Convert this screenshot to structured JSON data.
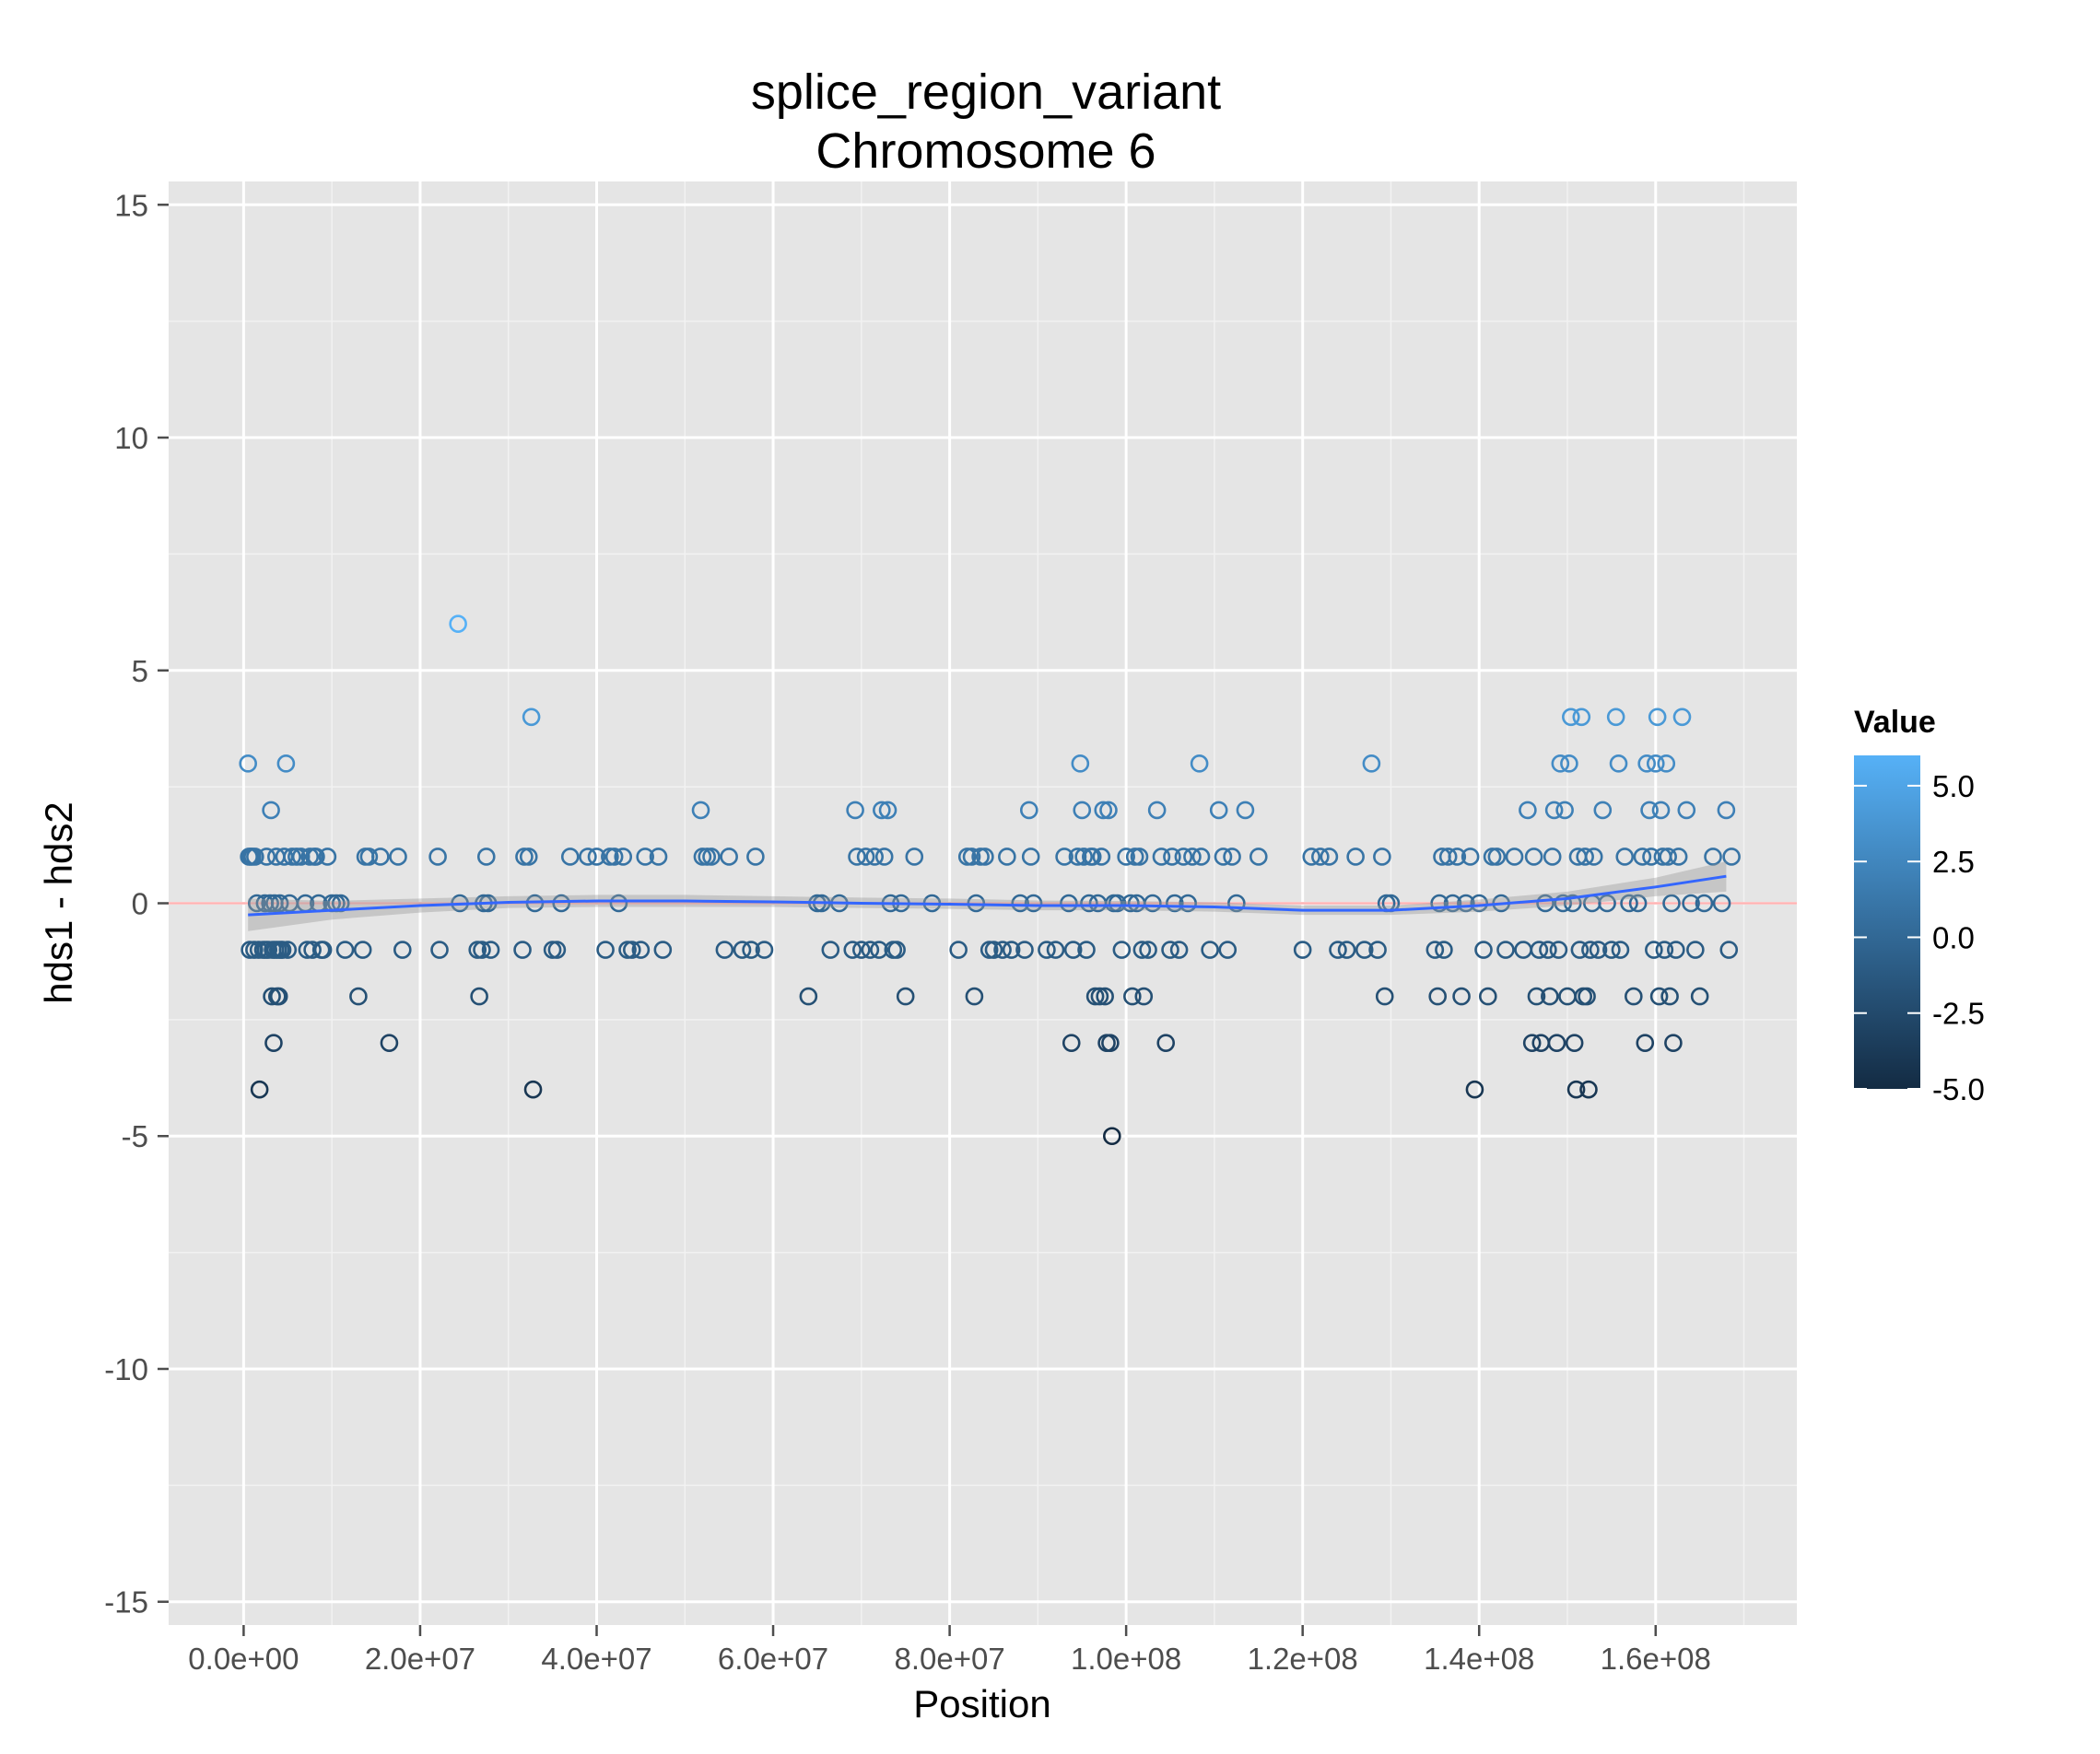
{
  "chart_data": {
    "type": "scatter",
    "title": "splice_region_variant",
    "subtitle": "Chromosome 6",
    "xlabel": "Position",
    "ylabel": "hds1 - hds2",
    "xlim": [
      -8500000,
      176000000
    ],
    "ylim": [
      -15.5,
      15.5
    ],
    "x_ticks": [
      0,
      20000000,
      40000000,
      60000000,
      80000000,
      100000000,
      120000000,
      140000000,
      160000000
    ],
    "x_tick_labels": [
      "0.0e+00",
      "2.0e+07",
      "4.0e+07",
      "6.0e+07",
      "8.0e+07",
      "1.0e+08",
      "1.2e+08",
      "1.4e+08",
      "1.6e+08"
    ],
    "y_ticks": [
      -15,
      -10,
      -5,
      0,
      5,
      10,
      15
    ],
    "y_tick_labels": [
      "-15",
      "-10",
      "-5",
      "0",
      "5",
      "10",
      "15"
    ],
    "grid": true,
    "reference_line": {
      "y": 0,
      "color": "#ffb3b3"
    },
    "legend": {
      "title": "Value",
      "placement": "right",
      "type": "continuous-color",
      "range": [
        -5,
        6
      ],
      "color_low": "#132b43",
      "color_high": "#56b1f7",
      "labels": [
        "5.0",
        "2.5",
        "0.0",
        "-2.5",
        "-5.0"
      ],
      "label_values": [
        5,
        2.5,
        0,
        -2.5,
        -5
      ]
    },
    "smooth": {
      "color": "#3366ff",
      "band_color": "#999999",
      "x": [
        500000,
        10000000,
        20000000,
        30000000,
        40000000,
        50000000,
        60000000,
        70000000,
        80000000,
        90000000,
        100000000,
        110000000,
        120000000,
        130000000,
        140000000,
        150000000,
        160000000,
        168000000
      ],
      "y": [
        -0.25,
        -0.15,
        -0.05,
        0.02,
        0.05,
        0.05,
        0.03,
        0.0,
        -0.02,
        -0.05,
        -0.05,
        -0.08,
        -0.15,
        -0.15,
        -0.05,
        0.1,
        0.35,
        0.58
      ],
      "lower": [
        -0.6,
        -0.35,
        -0.2,
        -0.1,
        -0.08,
        -0.08,
        -0.08,
        -0.1,
        -0.12,
        -0.15,
        -0.15,
        -0.18,
        -0.25,
        -0.25,
        -0.18,
        -0.05,
        0.15,
        0.25
      ],
      "upper": [
        0.1,
        0.05,
        0.1,
        0.15,
        0.18,
        0.18,
        0.15,
        0.12,
        0.1,
        0.06,
        0.05,
        0.02,
        -0.05,
        -0.05,
        0.08,
        0.25,
        0.55,
        0.9
      ]
    },
    "points": [
      [
        500000,
        3
      ],
      [
        600000,
        1
      ],
      [
        700000,
        -1
      ],
      [
        800000,
        1
      ],
      [
        1000000,
        1
      ],
      [
        1200000,
        -1
      ],
      [
        1300000,
        1
      ],
      [
        1500000,
        0
      ],
      [
        1700000,
        -1
      ],
      [
        1800000,
        -4
      ],
      [
        2200000,
        -1
      ],
      [
        2400000,
        0
      ],
      [
        2500000,
        -1
      ],
      [
        2600000,
        1
      ],
      [
        2800000,
        -1
      ],
      [
        3000000,
        0
      ],
      [
        3100000,
        2
      ],
      [
        3200000,
        -2
      ],
      [
        3300000,
        -1
      ],
      [
        3400000,
        -3
      ],
      [
        3500000,
        0
      ],
      [
        3600000,
        -1
      ],
      [
        3700000,
        1
      ],
      [
        3800000,
        -2
      ],
      [
        3900000,
        -1
      ],
      [
        4000000,
        -2
      ],
      [
        4100000,
        0
      ],
      [
        4200000,
        -1
      ],
      [
        4400000,
        -1
      ],
      [
        4600000,
        1
      ],
      [
        4800000,
        3
      ],
      [
        5000000,
        -1
      ],
      [
        5200000,
        0
      ],
      [
        5500000,
        1
      ],
      [
        6000000,
        1
      ],
      [
        6500000,
        1
      ],
      [
        7000000,
        0
      ],
      [
        7200000,
        -1
      ],
      [
        7500000,
        1
      ],
      [
        7800000,
        -1
      ],
      [
        8000000,
        1
      ],
      [
        8200000,
        1
      ],
      [
        8500000,
        0
      ],
      [
        8800000,
        -1
      ],
      [
        9000000,
        -1
      ],
      [
        9500000,
        1
      ],
      [
        10000000,
        0
      ],
      [
        10500000,
        0
      ],
      [
        11000000,
        0
      ],
      [
        11500000,
        -1
      ],
      [
        13000000,
        -2
      ],
      [
        13500000,
        -1
      ],
      [
        13800000,
        1
      ],
      [
        14200000,
        1
      ],
      [
        15500000,
        1
      ],
      [
        16500000,
        -3
      ],
      [
        17500000,
        1
      ],
      [
        18000000,
        -1
      ],
      [
        22000000,
        1
      ],
      [
        22200000,
        -1
      ],
      [
        24300000,
        6
      ],
      [
        24500000,
        0
      ],
      [
        26500000,
        -1
      ],
      [
        26700000,
        -2
      ],
      [
        27000000,
        -1
      ],
      [
        27200000,
        0
      ],
      [
        27500000,
        1
      ],
      [
        27700000,
        0
      ],
      [
        28000000,
        -1
      ],
      [
        31600000,
        -1
      ],
      [
        31800000,
        1
      ],
      [
        32300000,
        1
      ],
      [
        32600000,
        4
      ],
      [
        32800000,
        -4
      ],
      [
        33000000,
        0
      ],
      [
        35000000,
        -1
      ],
      [
        35500000,
        -1
      ],
      [
        36000000,
        0
      ],
      [
        37000000,
        1
      ],
      [
        39000000,
        1
      ],
      [
        40000000,
        1
      ],
      [
        41000000,
        -1
      ],
      [
        41500000,
        1
      ],
      [
        42000000,
        1
      ],
      [
        42500000,
        0
      ],
      [
        43000000,
        1
      ],
      [
        43500000,
        -1
      ],
      [
        44000000,
        -1
      ],
      [
        45000000,
        -1
      ],
      [
        45500000,
        1
      ],
      [
        47000000,
        1
      ],
      [
        47500000,
        -1
      ],
      [
        51800000,
        2
      ],
      [
        52000000,
        1
      ],
      [
        52500000,
        1
      ],
      [
        53000000,
        1
      ],
      [
        54500000,
        -1
      ],
      [
        55000000,
        1
      ],
      [
        56500000,
        -1
      ],
      [
        57500000,
        -1
      ],
      [
        58000000,
        1
      ],
      [
        59000000,
        -1
      ],
      [
        64000000,
        -2
      ],
      [
        65000000,
        0
      ],
      [
        65500000,
        0
      ],
      [
        66500000,
        -1
      ],
      [
        67500000,
        0
      ],
      [
        69000000,
        -1
      ],
      [
        69300000,
        2
      ],
      [
        69500000,
        1
      ],
      [
        70000000,
        -1
      ],
      [
        70500000,
        1
      ],
      [
        71000000,
        -1
      ],
      [
        71500000,
        1
      ],
      [
        72000000,
        -1
      ],
      [
        72300000,
        2
      ],
      [
        72600000,
        1
      ],
      [
        73000000,
        2
      ],
      [
        73300000,
        0
      ],
      [
        73600000,
        -1
      ],
      [
        74000000,
        -1
      ],
      [
        74500000,
        0
      ],
      [
        75000000,
        -2
      ],
      [
        76000000,
        1
      ],
      [
        78000000,
        0
      ],
      [
        81000000,
        -1
      ],
      [
        82000000,
        1
      ],
      [
        82500000,
        1
      ],
      [
        82800000,
        -2
      ],
      [
        83000000,
        0
      ],
      [
        83500000,
        1
      ],
      [
        84000000,
        1
      ],
      [
        84500000,
        -1
      ],
      [
        85000000,
        -1
      ],
      [
        86000000,
        -1
      ],
      [
        86500000,
        1
      ],
      [
        87000000,
        -1
      ],
      [
        88000000,
        0
      ],
      [
        88500000,
        -1
      ],
      [
        89000000,
        2
      ],
      [
        89200000,
        1
      ],
      [
        89500000,
        0
      ],
      [
        91000000,
        -1
      ],
      [
        92000000,
        -1
      ],
      [
        93000000,
        1
      ],
      [
        93500000,
        0
      ],
      [
        93800000,
        -3
      ],
      [
        94000000,
        -1
      ],
      [
        94500000,
        1
      ],
      [
        94800000,
        3
      ],
      [
        95000000,
        2
      ],
      [
        95200000,
        1
      ],
      [
        95500000,
        -1
      ],
      [
        95800000,
        0
      ],
      [
        96000000,
        1
      ],
      [
        96200000,
        1
      ],
      [
        96500000,
        -2
      ],
      [
        96800000,
        0
      ],
      [
        97000000,
        -2
      ],
      [
        97200000,
        1
      ],
      [
        97400000,
        2
      ],
      [
        97600000,
        -2
      ],
      [
        97800000,
        -3
      ],
      [
        98000000,
        2
      ],
      [
        98200000,
        -3
      ],
      [
        98400000,
        -5
      ],
      [
        98600000,
        0
      ],
      [
        99000000,
        0
      ],
      [
        99500000,
        -1
      ],
      [
        100000000,
        1
      ],
      [
        100500000,
        0
      ],
      [
        100700000,
        -2
      ],
      [
        101000000,
        1
      ],
      [
        101200000,
        0
      ],
      [
        101500000,
        1
      ],
      [
        101800000,
        -1
      ],
      [
        102000000,
        -2
      ],
      [
        102500000,
        -1
      ],
      [
        103000000,
        0
      ],
      [
        103500000,
        2
      ],
      [
        104000000,
        1
      ],
      [
        104500000,
        -3
      ],
      [
        105000000,
        -1
      ],
      [
        105200000,
        1
      ],
      [
        105500000,
        0
      ],
      [
        106000000,
        -1
      ],
      [
        106500000,
        1
      ],
      [
        107000000,
        0
      ],
      [
        107500000,
        1
      ],
      [
        108300000,
        3
      ],
      [
        108500000,
        1
      ],
      [
        109500000,
        -1
      ],
      [
        110500000,
        2
      ],
      [
        111000000,
        1
      ],
      [
        111500000,
        -1
      ],
      [
        112000000,
        1
      ],
      [
        112500000,
        0
      ],
      [
        113500000,
        2
      ],
      [
        115000000,
        1
      ],
      [
        120000000,
        -1
      ],
      [
        121000000,
        1
      ],
      [
        122000000,
        1
      ],
      [
        123000000,
        1
      ],
      [
        124000000,
        -1
      ],
      [
        125000000,
        -1
      ],
      [
        126000000,
        1
      ],
      [
        127000000,
        -1
      ],
      [
        127800000,
        3
      ],
      [
        128500000,
        -1
      ],
      [
        129000000,
        1
      ],
      [
        129300000,
        -2
      ],
      [
        129500000,
        0
      ],
      [
        130000000,
        0
      ],
      [
        135000000,
        -1
      ],
      [
        135300000,
        -2
      ],
      [
        135500000,
        0
      ],
      [
        135800000,
        1
      ],
      [
        136000000,
        -1
      ],
      [
        136500000,
        1
      ],
      [
        137000000,
        0
      ],
      [
        137500000,
        1
      ],
      [
        138000000,
        -2
      ],
      [
        138500000,
        0
      ],
      [
        139000000,
        1
      ],
      [
        139500000,
        -4
      ],
      [
        140000000,
        0
      ],
      [
        140500000,
        -1
      ],
      [
        141000000,
        -2
      ],
      [
        141500000,
        1
      ],
      [
        142000000,
        1
      ],
      [
        142500000,
        0
      ],
      [
        143000000,
        -1
      ],
      [
        144000000,
        1
      ],
      [
        145000000,
        -1
      ],
      [
        145500000,
        2
      ],
      [
        146000000,
        -3
      ],
      [
        146200000,
        1
      ],
      [
        146500000,
        -2
      ],
      [
        146800000,
        -1
      ],
      [
        147000000,
        -3
      ],
      [
        147500000,
        0
      ],
      [
        147800000,
        -1
      ],
      [
        148000000,
        -2
      ],
      [
        148300000,
        1
      ],
      [
        148500000,
        2
      ],
      [
        148800000,
        -3
      ],
      [
        149000000,
        -1
      ],
      [
        149200000,
        3
      ],
      [
        149500000,
        0
      ],
      [
        149700000,
        2
      ],
      [
        150000000,
        -2
      ],
      [
        150200000,
        3
      ],
      [
        150400000,
        4
      ],
      [
        150600000,
        0
      ],
      [
        150800000,
        -3
      ],
      [
        151000000,
        -4
      ],
      [
        151200000,
        1
      ],
      [
        151400000,
        -1
      ],
      [
        151600000,
        4
      ],
      [
        151800000,
        -2
      ],
      [
        152000000,
        1
      ],
      [
        152200000,
        -2
      ],
      [
        152400000,
        -4
      ],
      [
        152600000,
        -1
      ],
      [
        152800000,
        0
      ],
      [
        153000000,
        1
      ],
      [
        153500000,
        -1
      ],
      [
        154000000,
        2
      ],
      [
        154500000,
        0
      ],
      [
        155000000,
        -1
      ],
      [
        155500000,
        4
      ],
      [
        155800000,
        3
      ],
      [
        156000000,
        -1
      ],
      [
        156500000,
        1
      ],
      [
        157000000,
        0
      ],
      [
        157500000,
        -2
      ],
      [
        158000000,
        0
      ],
      [
        158500000,
        1
      ],
      [
        158800000,
        -3
      ],
      [
        159000000,
        3
      ],
      [
        159300000,
        2
      ],
      [
        159500000,
        1
      ],
      [
        159800000,
        -1
      ],
      [
        160000000,
        3
      ],
      [
        160200000,
        4
      ],
      [
        160400000,
        -2
      ],
      [
        160600000,
        2
      ],
      [
        160800000,
        1
      ],
      [
        161000000,
        -1
      ],
      [
        161200000,
        3
      ],
      [
        161400000,
        1
      ],
      [
        161600000,
        -2
      ],
      [
        161800000,
        0
      ],
      [
        162000000,
        -3
      ],
      [
        162300000,
        -1
      ],
      [
        162600000,
        1
      ],
      [
        163000000,
        4
      ],
      [
        163500000,
        2
      ],
      [
        164000000,
        0
      ],
      [
        164500000,
        -1
      ],
      [
        165000000,
        -2
      ],
      [
        165500000,
        0
      ],
      [
        166500000,
        1
      ],
      [
        167500000,
        0
      ],
      [
        168000000,
        2
      ],
      [
        168300000,
        -1
      ],
      [
        168600000,
        1
      ]
    ]
  }
}
